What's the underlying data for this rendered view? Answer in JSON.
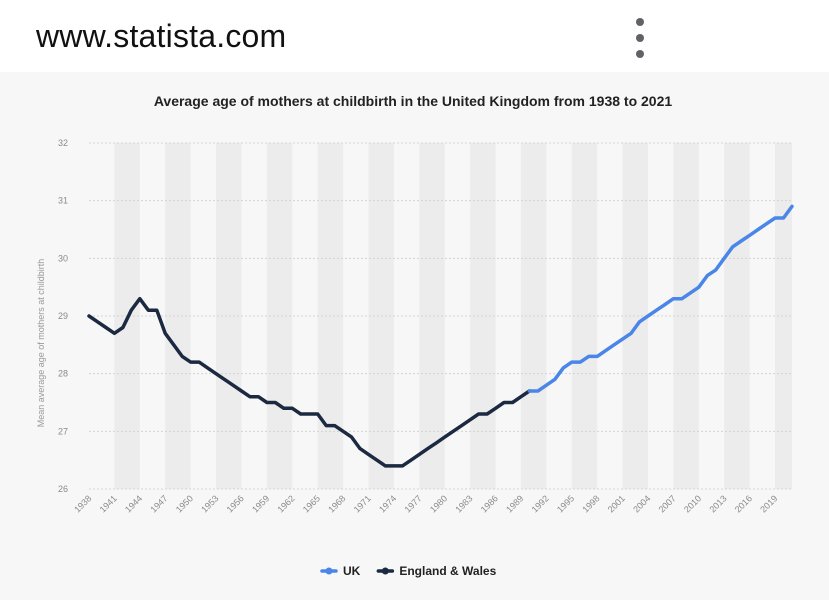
{
  "browser": {
    "url": "www.statista.com",
    "menu_icon": "more-vert-icon"
  },
  "colors": {
    "uk": "#4a86e8",
    "england_wales": "#1b2a41",
    "band": "#ececec",
    "grid": "#d4d4d4"
  },
  "chart_data": {
    "type": "line",
    "title": "Average age of mothers at childbirth in the United Kingdom from 1938 to 2021",
    "xlabel": "",
    "ylabel": "Mean average age of mothers at childbirth",
    "xlim": [
      1938,
      2021
    ],
    "ylim": [
      26,
      32
    ],
    "y_ticks": [
      26,
      27,
      28,
      29,
      30,
      31,
      32
    ],
    "x_ticks": [
      1938,
      1941,
      1944,
      1947,
      1950,
      1953,
      1956,
      1959,
      1962,
      1965,
      1968,
      1971,
      1974,
      1977,
      1980,
      1983,
      1986,
      1989,
      1992,
      1995,
      1998,
      2001,
      2004,
      2007,
      2010,
      2013,
      2016,
      2019
    ],
    "grid": true,
    "legend_position": "bottom",
    "series": [
      {
        "name": "England & Wales",
        "color": "#1b2a41",
        "points": [
          [
            1938,
            29.0
          ],
          [
            1939,
            28.9
          ],
          [
            1940,
            28.8
          ],
          [
            1941,
            28.7
          ],
          [
            1942,
            28.8
          ],
          [
            1943,
            29.1
          ],
          [
            1944,
            29.3
          ],
          [
            1945,
            29.1
          ],
          [
            1946,
            29.1
          ],
          [
            1947,
            28.7
          ],
          [
            1948,
            28.5
          ],
          [
            1949,
            28.3
          ],
          [
            1950,
            28.2
          ],
          [
            1951,
            28.2
          ],
          [
            1952,
            28.1
          ],
          [
            1953,
            28.0
          ],
          [
            1954,
            27.9
          ],
          [
            1955,
            27.8
          ],
          [
            1956,
            27.7
          ],
          [
            1957,
            27.6
          ],
          [
            1958,
            27.6
          ],
          [
            1959,
            27.5
          ],
          [
            1960,
            27.5
          ],
          [
            1961,
            27.4
          ],
          [
            1962,
            27.4
          ],
          [
            1963,
            27.3
          ],
          [
            1964,
            27.3
          ],
          [
            1965,
            27.3
          ],
          [
            1966,
            27.1
          ],
          [
            1967,
            27.1
          ],
          [
            1968,
            27.0
          ],
          [
            1969,
            26.9
          ],
          [
            1970,
            26.7
          ],
          [
            1971,
            26.6
          ],
          [
            1972,
            26.5
          ],
          [
            1973,
            26.4
          ],
          [
            1974,
            26.4
          ],
          [
            1975,
            26.4
          ],
          [
            1976,
            26.5
          ],
          [
            1977,
            26.6
          ],
          [
            1978,
            26.7
          ],
          [
            1979,
            26.8
          ],
          [
            1980,
            26.9
          ],
          [
            1981,
            27.0
          ],
          [
            1982,
            27.1
          ],
          [
            1983,
            27.2
          ],
          [
            1984,
            27.3
          ],
          [
            1985,
            27.3
          ],
          [
            1986,
            27.4
          ],
          [
            1987,
            27.5
          ],
          [
            1988,
            27.5
          ],
          [
            1989,
            27.6
          ],
          [
            1990,
            27.7
          ]
        ]
      },
      {
        "name": "UK",
        "color": "#4a86e8",
        "points": [
          [
            1990,
            27.7
          ],
          [
            1991,
            27.7
          ],
          [
            1992,
            27.8
          ],
          [
            1993,
            27.9
          ],
          [
            1994,
            28.1
          ],
          [
            1995,
            28.2
          ],
          [
            1996,
            28.2
          ],
          [
            1997,
            28.3
          ],
          [
            1998,
            28.3
          ],
          [
            1999,
            28.4
          ],
          [
            2000,
            28.5
          ],
          [
            2001,
            28.6
          ],
          [
            2002,
            28.7
          ],
          [
            2003,
            28.9
          ],
          [
            2004,
            29.0
          ],
          [
            2005,
            29.1
          ],
          [
            2006,
            29.2
          ],
          [
            2007,
            29.3
          ],
          [
            2008,
            29.3
          ],
          [
            2009,
            29.4
          ],
          [
            2010,
            29.5
          ],
          [
            2011,
            29.7
          ],
          [
            2012,
            29.8
          ],
          [
            2013,
            30.0
          ],
          [
            2014,
            30.2
          ],
          [
            2015,
            30.3
          ],
          [
            2016,
            30.4
          ],
          [
            2017,
            30.5
          ],
          [
            2018,
            30.6
          ],
          [
            2019,
            30.7
          ],
          [
            2020,
            30.7
          ],
          [
            2021,
            30.9
          ]
        ]
      }
    ],
    "legend": [
      {
        "label": "UK",
        "color": "#4a86e8"
      },
      {
        "label": "England & Wales",
        "color": "#1b2a41"
      }
    ]
  }
}
